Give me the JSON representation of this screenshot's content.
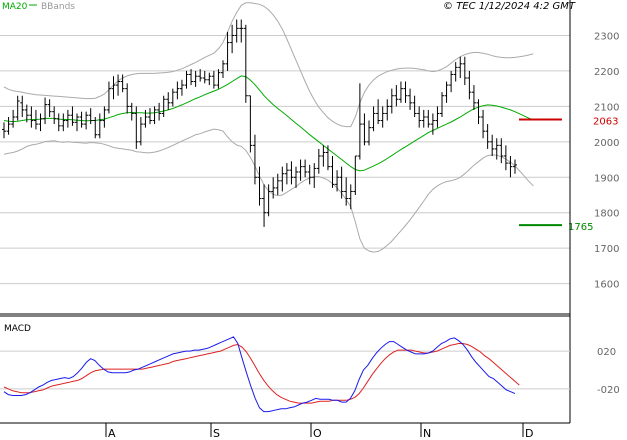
{
  "header": {
    "copyright": "© TEC 1/12/2024 4:2 GMT"
  },
  "legend": [
    {
      "name": "MA20",
      "color": "#00aa00"
    },
    {
      "name": "BBands",
      "color": "#999999"
    }
  ],
  "colors": {
    "price": "#000000",
    "ma20": "#00aa00",
    "bbands": "#aaaaaa",
    "resistance": "#cc0000",
    "support": "#008800",
    "macd": "#1a1aee",
    "signal": "#dd2222",
    "grid": "#cccccc"
  },
  "months": [
    "A",
    "S",
    "O",
    "N",
    "D"
  ],
  "chart_data": [
    {
      "type": "line",
      "panel": "price",
      "ylim": [
        1520,
        2400
      ],
      "yticks": [
        1600,
        1700,
        1800,
        1900,
        2000,
        2100,
        2200,
        2300
      ],
      "grid": true,
      "resistance": {
        "value": 2063,
        "label": "2063"
      },
      "support": {
        "value": 1765,
        "label": "1765"
      },
      "ohlc": [
        [
          2035,
          2055,
          2010,
          2030
        ],
        [
          2030,
          2070,
          2020,
          2050
        ],
        [
          2050,
          2090,
          2040,
          2070
        ],
        [
          2070,
          2130,
          2060,
          2115
        ],
        [
          2110,
          2130,
          2070,
          2090
        ],
        [
          2090,
          2105,
          2055,
          2075
        ],
        [
          2075,
          2100,
          2040,
          2060
        ],
        [
          2060,
          2090,
          2035,
          2050
        ],
        [
          2050,
          2080,
          2030,
          2065
        ],
        [
          2065,
          2125,
          2050,
          2105
        ],
        [
          2105,
          2120,
          2070,
          2085
        ],
        [
          2085,
          2100,
          2050,
          2065
        ],
        [
          2065,
          2080,
          2030,
          2045
        ],
        [
          2045,
          2080,
          2030,
          2060
        ],
        [
          2060,
          2090,
          2040,
          2075
        ],
        [
          2075,
          2100,
          2045,
          2055
        ],
        [
          2055,
          2080,
          2030,
          2070
        ],
        [
          2070,
          2085,
          2040,
          2050
        ],
        [
          2050,
          2085,
          2035,
          2075
        ],
        [
          2075,
          2095,
          2050,
          2060
        ],
        [
          2060,
          2070,
          2010,
          2020
        ],
        [
          2020,
          2080,
          2010,
          2060
        ],
        [
          2060,
          2100,
          2040,
          2090
        ],
        [
          2090,
          2170,
          2080,
          2150
        ],
        [
          2150,
          2185,
          2120,
          2160
        ],
        [
          2160,
          2190,
          2130,
          2170
        ],
        [
          2170,
          2190,
          2140,
          2150
        ],
        [
          2150,
          2165,
          2080,
          2100
        ],
        [
          2100,
          2110,
          2060,
          2080
        ],
        [
          2080,
          2100,
          1980,
          2000
        ],
        [
          2000,
          2070,
          1990,
          2050
        ],
        [
          2050,
          2090,
          2040,
          2070
        ],
        [
          2070,
          2095,
          2050,
          2060
        ],
        [
          2060,
          2100,
          2050,
          2090
        ],
        [
          2090,
          2110,
          2060,
          2080
        ],
        [
          2080,
          2130,
          2070,
          2120
        ],
        [
          2120,
          2140,
          2090,
          2110
        ],
        [
          2110,
          2150,
          2100,
          2140
        ],
        [
          2140,
          2170,
          2120,
          2150
        ],
        [
          2150,
          2175,
          2130,
          2160
        ],
        [
          2160,
          2200,
          2150,
          2190
        ],
        [
          2190,
          2205,
          2160,
          2170
        ],
        [
          2170,
          2200,
          2155,
          2185
        ],
        [
          2185,
          2205,
          2170,
          2180
        ],
        [
          2180,
          2200,
          2165,
          2175
        ],
        [
          2175,
          2195,
          2160,
          2185
        ],
        [
          2185,
          2200,
          2150,
          2160
        ],
        [
          2160,
          2205,
          2150,
          2195
        ],
        [
          2195,
          2230,
          2180,
          2220
        ],
        [
          2220,
          2310,
          2200,
          2280
        ],
        [
          2280,
          2330,
          2250,
          2300
        ],
        [
          2300,
          2345,
          2280,
          2320
        ],
        [
          2320,
          2345,
          2280,
          2320
        ],
        [
          2320,
          2330,
          2110,
          2130
        ],
        [
          2130,
          2130,
          1970,
          1990
        ],
        [
          1990,
          2020,
          1880,
          1900
        ],
        [
          1900,
          1930,
          1820,
          1840
        ],
        [
          1840,
          1880,
          1760,
          1800
        ],
        [
          1800,
          1880,
          1790,
          1860
        ],
        [
          1860,
          1900,
          1840,
          1870
        ],
        [
          1870,
          1910,
          1850,
          1890
        ],
        [
          1890,
          1930,
          1860,
          1910
        ],
        [
          1910,
          1940,
          1880,
          1920
        ],
        [
          1920,
          1945,
          1880,
          1900
        ],
        [
          1900,
          1930,
          1870,
          1915
        ],
        [
          1915,
          1950,
          1890,
          1930
        ],
        [
          1930,
          1950,
          1900,
          1915
        ],
        [
          1915,
          1935,
          1880,
          1900
        ],
        [
          1900,
          1940,
          1870,
          1925
        ],
        [
          1925,
          1980,
          1910,
          1960
        ],
        [
          1960,
          1990,
          1930,
          1970
        ],
        [
          1970,
          1990,
          1920,
          1930
        ],
        [
          1930,
          1960,
          1870,
          1880
        ],
        [
          1880,
          1920,
          1860,
          1900
        ],
        [
          1900,
          1930,
          1840,
          1860
        ],
        [
          1860,
          1900,
          1820,
          1840
        ],
        [
          1840,
          1880,
          1810,
          1860
        ],
        [
          1860,
          1960,
          1850,
          1960
        ],
        [
          1960,
          2165,
          1950,
          2050
        ],
        [
          2050,
          2080,
          1990,
          2000
        ],
        [
          2000,
          2060,
          1990,
          2040
        ],
        [
          2040,
          2100,
          2030,
          2080
        ],
        [
          2080,
          2120,
          2050,
          2060
        ],
        [
          2060,
          2100,
          2040,
          2080
        ],
        [
          2080,
          2120,
          2060,
          2100
        ],
        [
          2100,
          2150,
          2080,
          2130
        ],
        [
          2130,
          2160,
          2100,
          2120
        ],
        [
          2120,
          2170,
          2110,
          2150
        ],
        [
          2150,
          2170,
          2110,
          2130
        ],
        [
          2130,
          2150,
          2090,
          2110
        ],
        [
          2110,
          2130,
          2070,
          2080
        ],
        [
          2080,
          2100,
          2040,
          2060
        ],
        [
          2060,
          2090,
          2040,
          2070
        ],
        [
          2070,
          2090,
          2040,
          2050
        ],
        [
          2050,
          2080,
          2020,
          2060
        ],
        [
          2060,
          2100,
          2040,
          2080
        ],
        [
          2080,
          2140,
          2070,
          2130
        ],
        [
          2130,
          2170,
          2110,
          2160
        ],
        [
          2160,
          2200,
          2140,
          2190
        ],
        [
          2190,
          2225,
          2170,
          2210
        ],
        [
          2210,
          2240,
          2180,
          2220
        ],
        [
          2220,
          2240,
          2160,
          2180
        ],
        [
          2180,
          2200,
          2120,
          2140
        ],
        [
          2140,
          2160,
          2090,
          2110
        ],
        [
          2110,
          2120,
          2050,
          2070
        ],
        [
          2070,
          2090,
          2010,
          2030
        ],
        [
          2030,
          2050,
          1980,
          2000
        ],
        [
          2000,
          2020,
          1960,
          1980
        ],
        [
          1980,
          2010,
          1950,
          1990
        ],
        [
          1990,
          2010,
          1940,
          1960
        ],
        [
          1960,
          1990,
          1920,
          1940
        ],
        [
          1940,
          1960,
          1900,
          1930
        ],
        [
          1930,
          1950,
          1910,
          1935
        ]
      ],
      "ma20": [
        2060,
        2058,
        2057,
        2058,
        2060,
        2062,
        2063,
        2063,
        2064,
        2066,
        2066,
        2066,
        2064,
        2063,
        2063,
        2062,
        2061,
        2060,
        2059,
        2060,
        2060,
        2062,
        2064,
        2068,
        2072,
        2077,
        2080,
        2082,
        2083,
        2082,
        2082,
        2081,
        2081,
        2082,
        2084,
        2087,
        2090,
        2094,
        2099,
        2104,
        2110,
        2116,
        2122,
        2127,
        2133,
        2138,
        2143,
        2148,
        2155,
        2162,
        2170,
        2178,
        2186,
        2184,
        2174,
        2161,
        2146,
        2130,
        2117,
        2105,
        2094,
        2084,
        2074,
        2063,
        2052,
        2042,
        2031,
        2020,
        2010,
        2000,
        1990,
        1980,
        1970,
        1960,
        1950,
        1940,
        1930,
        1922,
        1918,
        1920,
        1926,
        1932,
        1938,
        1945,
        1953,
        1961,
        1970,
        1978,
        1986,
        1994,
        2002,
        2010,
        2018,
        2026,
        2032,
        2038,
        2044,
        2050,
        2056,
        2063,
        2070,
        2078,
        2086,
        2093,
        2098,
        2102,
        2104,
        2103,
        2101,
        2098,
        2094,
        2090,
        2085,
        2079,
        2073,
        2067,
        2062
      ],
      "bb_upper": [
        2155,
        2148,
        2144,
        2142,
        2140,
        2137,
        2135,
        2133,
        2132,
        2131,
        2130,
        2129,
        2128,
        2127,
        2126,
        2125,
        2124,
        2123,
        2122,
        2122,
        2123,
        2128,
        2135,
        2147,
        2160,
        2172,
        2180,
        2186,
        2190,
        2192,
        2193,
        2193,
        2193,
        2193,
        2194,
        2195,
        2196,
        2198,
        2202,
        2206,
        2212,
        2218,
        2224,
        2231,
        2238,
        2244,
        2250,
        2262,
        2280,
        2310,
        2340,
        2365,
        2385,
        2392,
        2392,
        2390,
        2388,
        2382,
        2372,
        2358,
        2340,
        2318,
        2290,
        2260,
        2230,
        2200,
        2170,
        2142,
        2118,
        2098,
        2082,
        2068,
        2058,
        2050,
        2045,
        2043,
        2043,
        2070,
        2110,
        2140,
        2160,
        2175,
        2185,
        2192,
        2198,
        2202,
        2205,
        2207,
        2208,
        2208,
        2207,
        2205,
        2203,
        2200,
        2198,
        2200,
        2205,
        2212,
        2222,
        2232,
        2240,
        2246,
        2250,
        2252,
        2252,
        2250,
        2247,
        2243,
        2240,
        2238,
        2237,
        2237,
        2238,
        2240,
        2242,
        2245,
        2248
      ],
      "bb_lower": [
        1965,
        1968,
        1970,
        1974,
        1980,
        1987,
        1991,
        1993,
        1996,
        2001,
        2002,
        2003,
        2000,
        1999,
        2000,
        1999,
        1998,
        1997,
        1996,
        1998,
        1997,
        1996,
        1993,
        1989,
        1984,
        1982,
        1980,
        1978,
        1976,
        1972,
        1971,
        1969,
        1969,
        1971,
        1974,
        1979,
        1984,
        1990,
        1996,
        2002,
        2008,
        2014,
        2020,
        2023,
        2028,
        2032,
        2036,
        2034,
        2030,
        2014,
        2000,
        1991,
        1987,
        1976,
        1956,
        1932,
        1904,
        1878,
        1862,
        1852,
        1848,
        1850,
        1858,
        1866,
        1874,
        1884,
        1892,
        1898,
        1902,
        1902,
        1898,
        1892,
        1882,
        1870,
        1855,
        1837,
        1817,
        1774,
        1726,
        1700,
        1692,
        1689,
        1691,
        1698,
        1708,
        1720,
        1735,
        1749,
        1764,
        1780,
        1797,
        1815,
        1833,
        1852,
        1866,
        1876,
        1883,
        1888,
        1890,
        1894,
        1900,
        1910,
        1922,
        1934,
        1944,
        1954,
        1961,
        1963,
        1962,
        1958,
        1951,
        1943,
        1932,
        1918,
        1904,
        1889,
        1876
      ]
    },
    {
      "type": "line",
      "panel": "macd",
      "title": "MACD",
      "ylim": [
        -55,
        55
      ],
      "yticks": [
        20,
        -20
      ],
      "ytick_labels": [
        "020",
        "-020"
      ],
      "grid": true,
      "macd": [
        -23,
        -26,
        -27,
        -27,
        -27,
        -26,
        -24,
        -21,
        -18,
        -16,
        -13,
        -11,
        -10,
        -9,
        -8,
        -9,
        -7,
        -3,
        2,
        8,
        12,
        10,
        5,
        1,
        -2,
        -3,
        -3,
        -3,
        -3,
        -2,
        0,
        1,
        3,
        5,
        7,
        9,
        11,
        13,
        15,
        17,
        18,
        19,
        20,
        20,
        21,
        21,
        22,
        23,
        25,
        27,
        29,
        31,
        33,
        35,
        28,
        12,
        -3,
        -17,
        -30,
        -40,
        -44,
        -44,
        -43,
        -42,
        -41,
        -41,
        -40,
        -39,
        -37,
        -35,
        -34,
        -32,
        -30,
        -31,
        -31,
        -31,
        -32,
        -32,
        -34,
        -34,
        -30,
        -22,
        -10,
        0,
        5,
        12,
        18,
        23,
        27,
        30,
        30,
        27,
        24,
        21,
        19,
        17,
        17,
        17,
        18,
        20,
        24,
        28,
        30,
        33,
        34,
        31,
        27,
        21,
        14,
        8,
        3,
        -2,
        -7,
        -9,
        -13,
        -17,
        -21,
        -23,
        -25
      ],
      "signal": [
        -18,
        -20,
        -22,
        -23,
        -24,
        -24,
        -24,
        -23,
        -22,
        -21,
        -19,
        -17,
        -16,
        -15,
        -14,
        -13,
        -12,
        -11,
        -9,
        -6,
        -3,
        -1,
        0,
        1,
        1,
        1,
        1,
        1,
        1,
        1,
        1,
        1,
        1,
        2,
        3,
        4,
        5,
        6,
        7,
        9,
        10,
        11,
        12,
        13,
        14,
        15,
        16,
        17,
        18,
        19,
        20,
        22,
        24,
        26,
        27,
        24,
        19,
        12,
        4,
        -4,
        -11,
        -17,
        -22,
        -26,
        -29,
        -31,
        -33,
        -34,
        -35,
        -35,
        -35,
        -35,
        -34,
        -33,
        -33,
        -33,
        -32,
        -32,
        -32,
        -32,
        -31,
        -29,
        -25,
        -19,
        -12,
        -5,
        1,
        7,
        12,
        16,
        19,
        21,
        21,
        21,
        21,
        20,
        19,
        18,
        18,
        19,
        20,
        22,
        24,
        26,
        27,
        28,
        28,
        27,
        25,
        22,
        19,
        15,
        12,
        8,
        4,
        0,
        -4,
        -8,
        -12,
        -16
      ]
    }
  ]
}
